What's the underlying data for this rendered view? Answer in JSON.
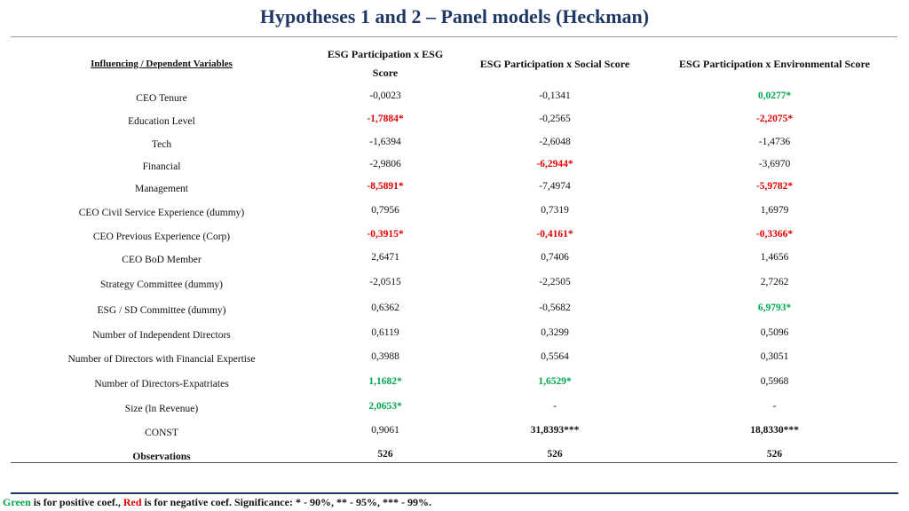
{
  "title": "Hypotheses 1 and 2 – Panel models (Heckman)",
  "table": {
    "headers": [
      "Influencing / Dependent Variables",
      "ESG Participation x ESG Score",
      "ESG Participation x Social Score",
      "ESG Participation x Environmental Score"
    ],
    "rows": [
      {
        "label": "CEO Tenure",
        "values": [
          "-0,0023",
          "-0,1341",
          "0,0277*"
        ],
        "styles": [
          "",
          "",
          "pos"
        ]
      },
      {
        "label": "Education Level",
        "values": [
          "-1,7884*",
          "-0,2565",
          "-2,2075*"
        ],
        "styles": [
          "neg",
          "",
          "neg"
        ]
      },
      {
        "label": "Tech",
        "values": [
          "-1,6394",
          "-2,6048",
          "-1,4736"
        ],
        "styles": [
          "",
          "",
          ""
        ]
      },
      {
        "label": "Financial",
        "values": [
          "-2,9806",
          "-6,2944*",
          "-3,6970"
        ],
        "styles": [
          "",
          "neg",
          ""
        ]
      },
      {
        "label": "Management",
        "values": [
          "-8,5891*",
          "-7,4974",
          "-5,9782*"
        ],
        "styles": [
          "neg",
          "",
          "neg"
        ]
      },
      {
        "label": "CEO Civil Service Experience (dummy)",
        "values": [
          "0,7956",
          "0,7319",
          "1,6979"
        ],
        "styles": [
          "",
          "",
          ""
        ]
      },
      {
        "label": "CEO Previous Experience (Corp)",
        "values": [
          "-0,3915*",
          "-0,4161*",
          "-0,3366*"
        ],
        "styles": [
          "neg",
          "neg",
          "neg"
        ]
      },
      {
        "label": "CEO BoD Member",
        "values": [
          "2,6471",
          "0,7406",
          "1,4656"
        ],
        "styles": [
          "",
          "",
          ""
        ]
      },
      {
        "label": "Strategy Committee (dummy)",
        "values": [
          "-2,0515",
          "-2,2505",
          "2,7262"
        ],
        "styles": [
          "",
          "",
          ""
        ]
      },
      {
        "label": "ESG / SD Committee (dummy)",
        "values": [
          "0,6362",
          "-0,5682",
          "6,9793*"
        ],
        "styles": [
          "",
          "",
          "pos"
        ]
      },
      {
        "label": "Number of Independent Directors",
        "values": [
          "0,6119",
          "0,3299",
          "0,5096"
        ],
        "styles": [
          "",
          "",
          ""
        ]
      },
      {
        "label": "Number of Directors with Financial Expertise",
        "values": [
          "0,3988",
          "0,5564",
          "0,3051"
        ],
        "styles": [
          "",
          "",
          ""
        ]
      },
      {
        "label": "Number of Directors-Expatriates",
        "values": [
          "1,1682*",
          "1,6529*",
          "0,5968"
        ],
        "styles": [
          "pos",
          "pos",
          ""
        ]
      },
      {
        "label": "Size (ln Revenue)",
        "values": [
          "2,0653*",
          "-",
          "-"
        ],
        "styles": [
          "pos",
          "",
          ""
        ]
      },
      {
        "label": "CONST",
        "values": [
          "0,9061",
          "31,8393***",
          "18,8330***"
        ],
        "styles": [
          "",
          "bold",
          "bold"
        ]
      },
      {
        "label": "Observations",
        "values": [
          "526",
          "526",
          "526"
        ],
        "styles": [
          "bold",
          "bold",
          "bold"
        ],
        "label_bold": true
      }
    ]
  },
  "footnote": {
    "green_word": "Green",
    "part1": " is for positive coef., ",
    "red_word": "Red",
    "part2": " is for negative coef.   Significance: * - 90%, ** - 95%, *** - 99%."
  },
  "colors": {
    "title": "#1f3864",
    "positive": "#00a84f",
    "negative": "#e00000"
  }
}
